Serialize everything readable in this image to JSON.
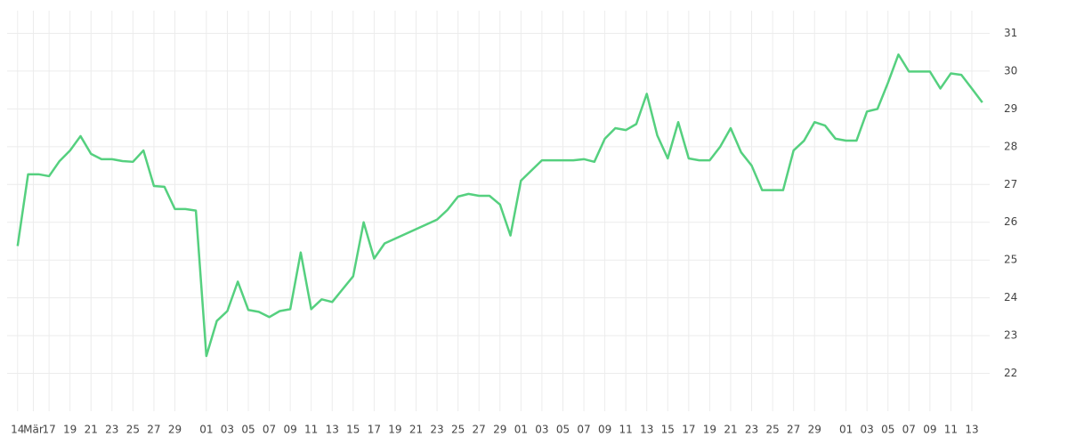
{
  "chart_data": {
    "type": "line",
    "x": [
      0,
      1,
      2,
      3,
      4,
      5,
      6,
      7,
      8,
      9,
      10,
      11,
      12,
      13,
      14,
      15,
      16,
      17,
      18,
      19,
      20,
      21,
      22,
      23,
      24,
      25,
      26,
      27,
      28,
      29,
      30,
      32,
      33,
      34,
      35,
      40,
      41,
      42,
      43,
      44,
      45,
      46,
      47,
      48,
      50,
      51,
      52,
      53,
      54,
      55,
      56,
      57,
      58,
      59,
      60,
      61,
      62,
      63,
      64,
      65,
      66,
      67,
      68,
      69,
      70,
      71,
      72,
      73,
      74,
      75,
      76,
      77,
      78,
      79,
      80,
      81,
      82,
      83,
      84,
      85,
      86,
      87,
      88,
      89,
      90,
      91,
      92
    ],
    "series": [
      {
        "color": "#55d07f",
        "values": [
          25.37,
          27.27,
          27.27,
          27.22,
          27.62,
          27.9,
          28.28,
          27.81,
          27.67,
          27.67,
          27.62,
          27.6,
          27.9,
          26.96,
          26.94,
          26.35,
          26.35,
          26.31,
          22.46,
          23.39,
          23.65,
          24.43,
          23.68,
          23.63,
          23.49,
          23.65,
          23.7,
          25.2,
          23.7,
          23.96,
          23.89,
          24.57,
          26.0,
          25.04,
          25.44,
          26.07,
          26.33,
          26.68,
          26.75,
          26.7,
          26.7,
          26.47,
          25.65,
          27.1,
          27.64,
          27.64,
          27.64,
          27.64,
          27.67,
          27.6,
          28.21,
          28.49,
          28.44,
          28.6,
          29.4,
          28.3,
          27.69,
          28.65,
          27.69,
          27.64,
          27.64,
          28.0,
          28.49,
          27.85,
          27.5,
          26.85,
          26.85,
          26.85,
          27.9,
          28.16,
          28.65,
          28.56,
          28.21,
          28.16,
          28.16,
          28.93,
          29.0,
          29.69,
          30.44,
          29.99,
          29.99,
          29.99,
          29.54,
          29.94,
          29.9,
          29.54,
          29.17
        ]
      }
    ],
    "xlim": [
      -1,
      92.7
    ],
    "xticks": [
      {
        "value": 0,
        "label": "14"
      },
      {
        "value": 1.5,
        "label": "Mär"
      },
      {
        "value": 3,
        "label": "17"
      },
      {
        "value": 5,
        "label": "19"
      },
      {
        "value": 7,
        "label": "21"
      },
      {
        "value": 9,
        "label": "23"
      },
      {
        "value": 11,
        "label": "25"
      },
      {
        "value": 13,
        "label": "27"
      },
      {
        "value": 15,
        "label": "29"
      },
      {
        "value": 18,
        "label": "01"
      },
      {
        "value": 20,
        "label": "03"
      },
      {
        "value": 22,
        "label": "05"
      },
      {
        "value": 24,
        "label": "07"
      },
      {
        "value": 26,
        "label": "09"
      },
      {
        "value": 28,
        "label": "11"
      },
      {
        "value": 30,
        "label": "13"
      },
      {
        "value": 32,
        "label": "15"
      },
      {
        "value": 34,
        "label": "17"
      },
      {
        "value": 36,
        "label": "19"
      },
      {
        "value": 38,
        "label": "21"
      },
      {
        "value": 40,
        "label": "23"
      },
      {
        "value": 42,
        "label": "25"
      },
      {
        "value": 44,
        "label": "27"
      },
      {
        "value": 46,
        "label": "29"
      },
      {
        "value": 48,
        "label": "01"
      },
      {
        "value": 50,
        "label": "03"
      },
      {
        "value": 52,
        "label": "05"
      },
      {
        "value": 54,
        "label": "07"
      },
      {
        "value": 56,
        "label": "09"
      },
      {
        "value": 58,
        "label": "11"
      },
      {
        "value": 60,
        "label": "13"
      },
      {
        "value": 62,
        "label": "15"
      },
      {
        "value": 64,
        "label": "17"
      },
      {
        "value": 66,
        "label": "19"
      },
      {
        "value": 68,
        "label": "21"
      },
      {
        "value": 70,
        "label": "23"
      },
      {
        "value": 72,
        "label": "25"
      },
      {
        "value": 74,
        "label": "27"
      },
      {
        "value": 76,
        "label": "29"
      },
      {
        "value": 79,
        "label": "01"
      },
      {
        "value": 81,
        "label": "03"
      },
      {
        "value": 83,
        "label": "05"
      },
      {
        "value": 85,
        "label": "07"
      },
      {
        "value": 87,
        "label": "09"
      },
      {
        "value": 89,
        "label": "11"
      },
      {
        "value": 91,
        "label": "13"
      }
    ],
    "ylim": [
      21,
      31.6
    ],
    "yticks": [
      22,
      23,
      24,
      25,
      26,
      27,
      28,
      29,
      30,
      31
    ],
    "grid": true
  }
}
